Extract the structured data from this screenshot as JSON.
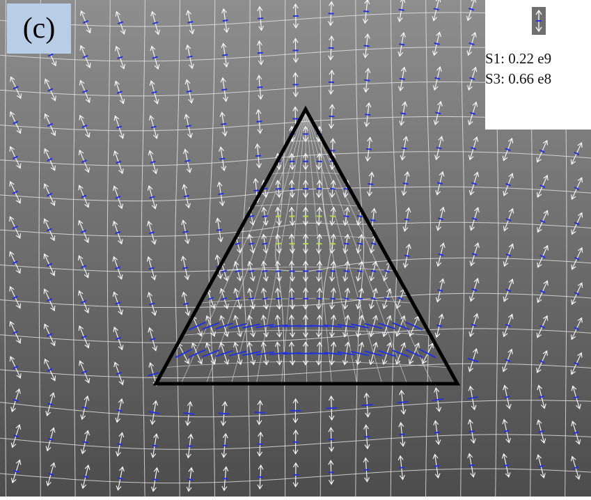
{
  "panel": {
    "label": "(c)"
  },
  "legend": {
    "s1": "S1: 0.22 e9",
    "s3": "S3: 0.66 e8",
    "swatch_icon": "stress-arrow-icon"
  },
  "colors": {
    "background_top": "#8c8c8c",
    "background_bottom": "#4a4a4a",
    "mesh": "#e8e8e8",
    "tension_arrow": "#ffffff",
    "compression_marker": "#2233dd",
    "minor_marker": "#b8d84a",
    "triangle_outline": "#000000",
    "panel_label_bg": "#b9cde6"
  }
}
